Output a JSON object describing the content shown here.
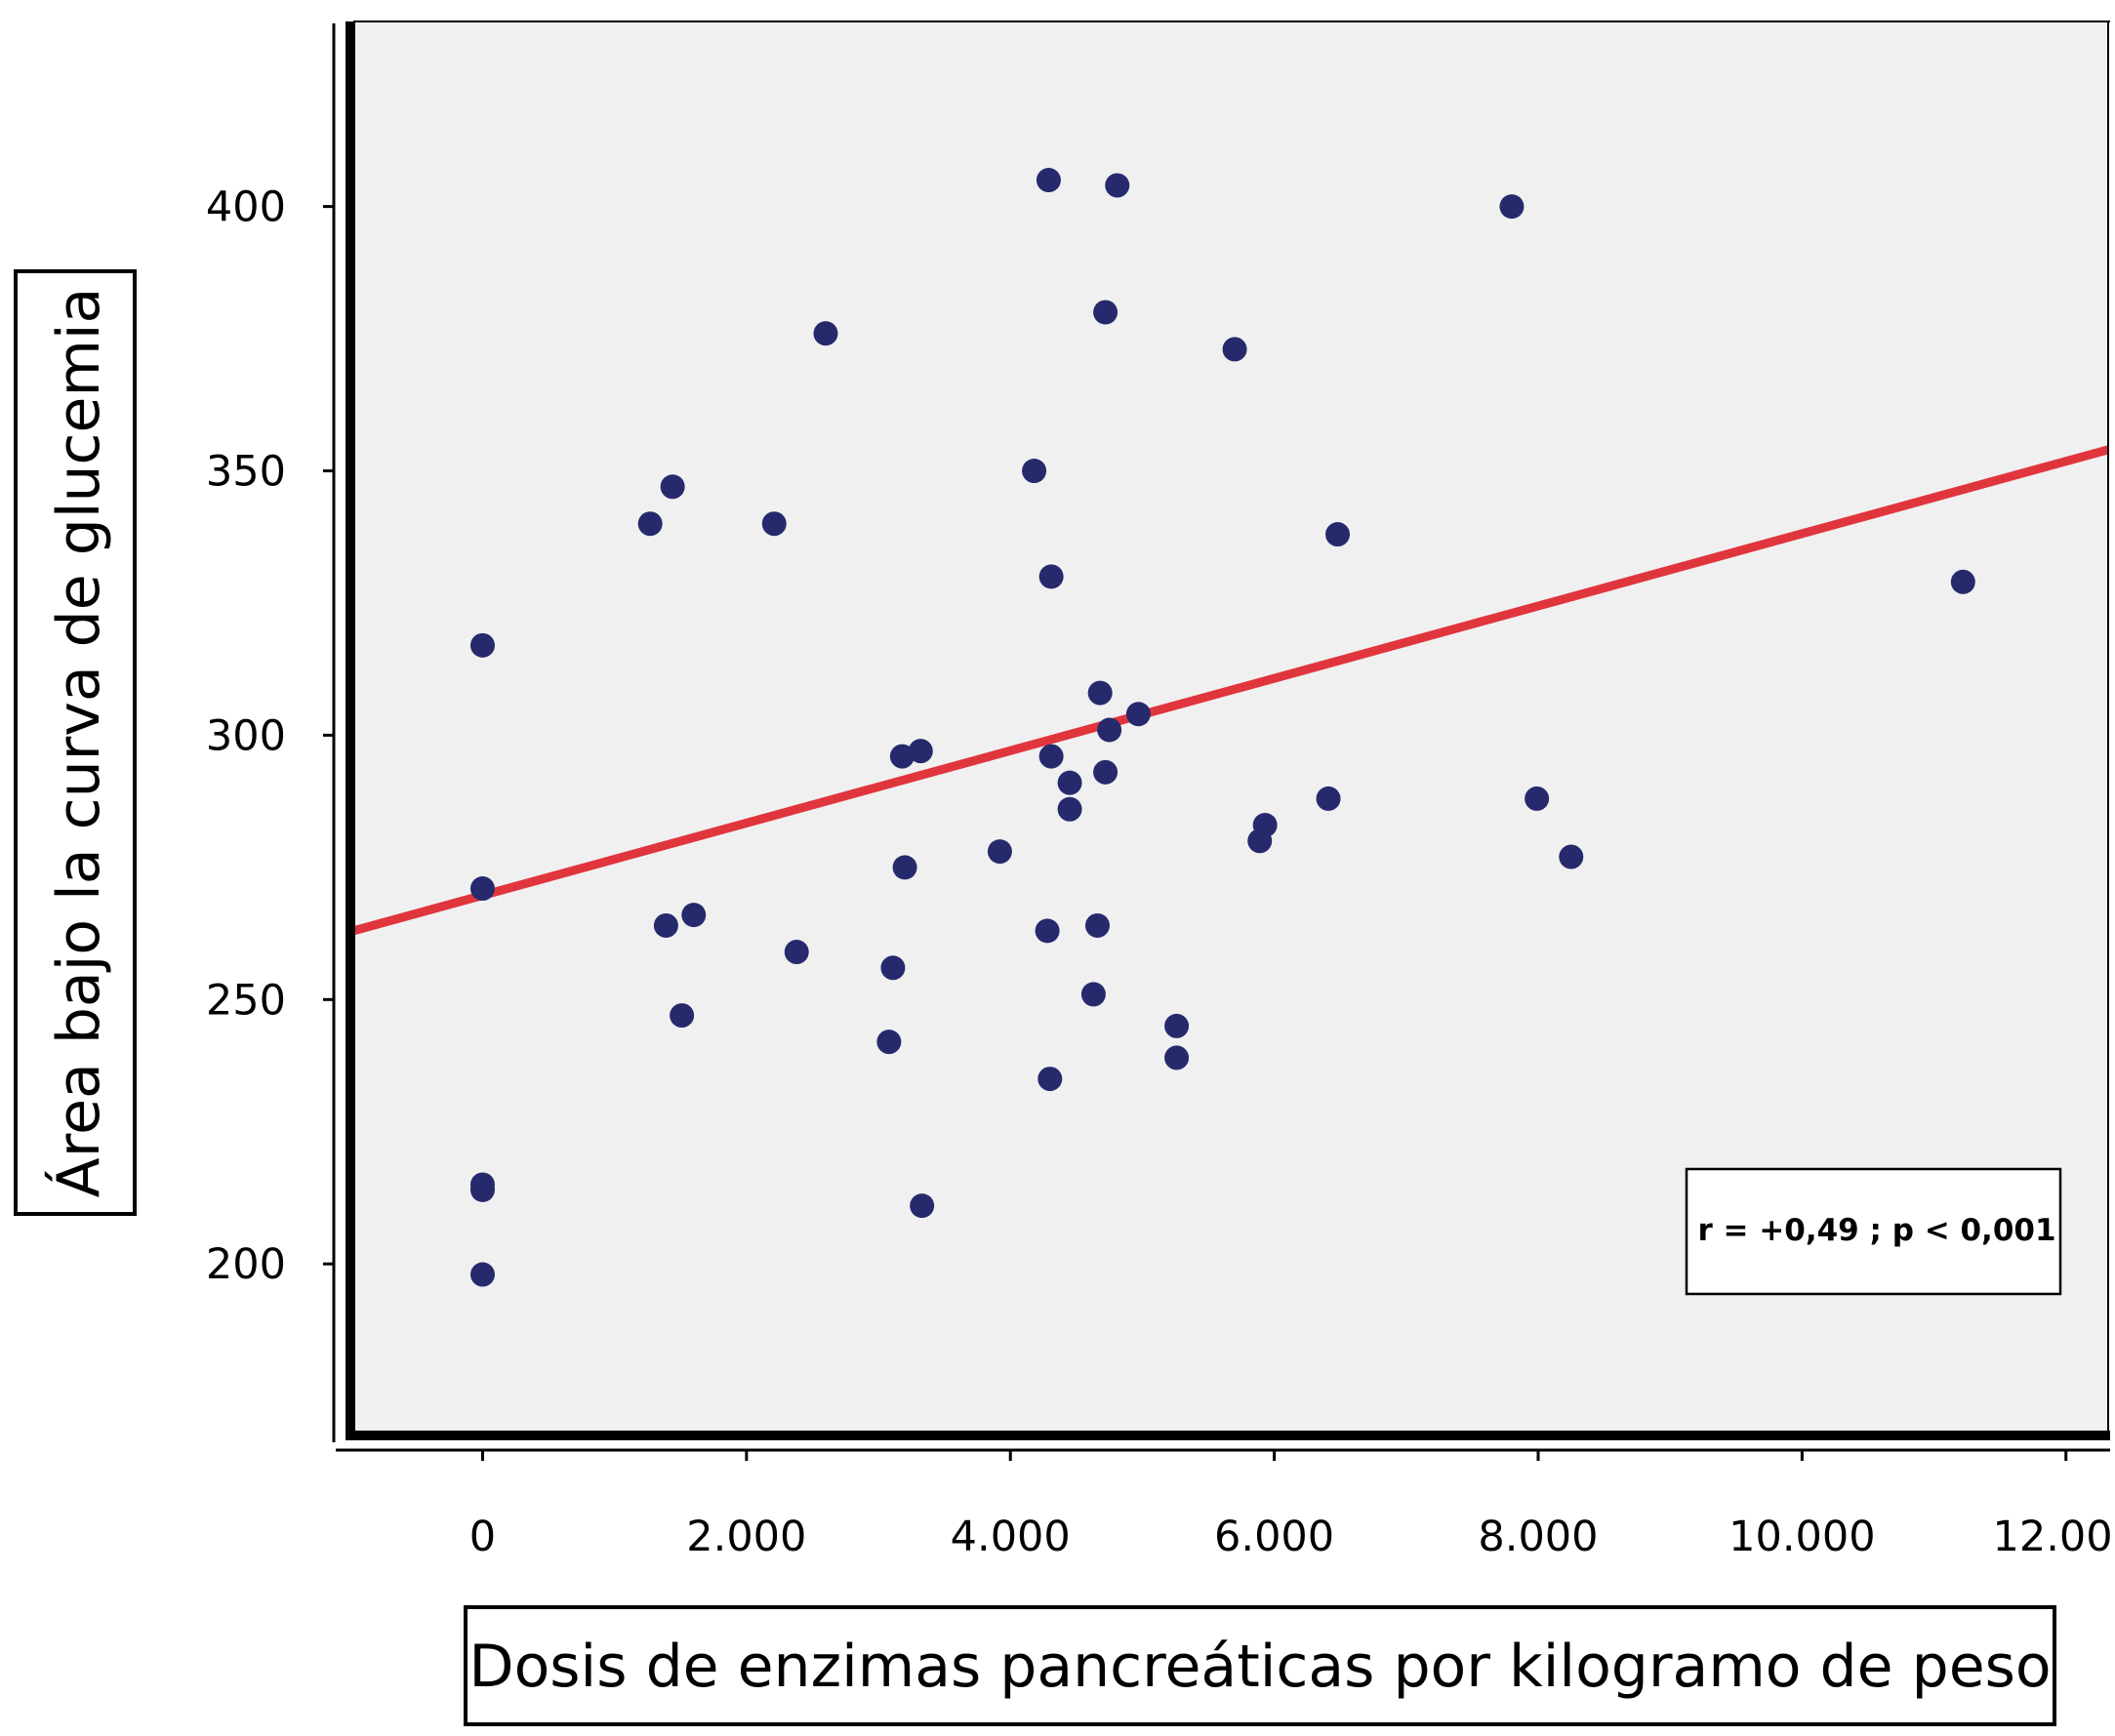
{
  "chart_data": {
    "type": "scatter",
    "title": "",
    "xlabel": "Dosis de enzimas pancreáticas por kilogramo de peso",
    "ylabel": "Área bajo la curva de glucemia",
    "xlim": [
      -980,
      12320
    ],
    "ylim": [
      167,
      435
    ],
    "x_ticks": [
      {
        "value": 0,
        "label": "0"
      },
      {
        "value": 2000,
        "label": "2.000"
      },
      {
        "value": 4000,
        "label": "4.000"
      },
      {
        "value": 6000,
        "label": "6.000"
      },
      {
        "value": 8000,
        "label": "8.000"
      },
      {
        "value": 10000,
        "label": "10.000"
      },
      {
        "value": 12000,
        "label": "12.000"
      }
    ],
    "y_ticks": [
      {
        "value": 200,
        "label": "200"
      },
      {
        "value": 250,
        "label": "250"
      },
      {
        "value": 300,
        "label": "300"
      },
      {
        "value": 350,
        "label": "350"
      },
      {
        "value": 400,
        "label": "400"
      }
    ],
    "grid": false,
    "points": [
      {
        "x": 0,
        "y": 317
      },
      {
        "x": 0,
        "y": 271
      },
      {
        "x": 0,
        "y": 215
      },
      {
        "x": 0,
        "y": 214
      },
      {
        "x": 0,
        "y": 198
      },
      {
        "x": 1270,
        "y": 340
      },
      {
        "x": 1440,
        "y": 347
      },
      {
        "x": 1390,
        "y": 264
      },
      {
        "x": 1600,
        "y": 266
      },
      {
        "x": 1510,
        "y": 247
      },
      {
        "x": 2210,
        "y": 340
      },
      {
        "x": 2600,
        "y": 376
      },
      {
        "x": 2380,
        "y": 259
      },
      {
        "x": 3110,
        "y": 256
      },
      {
        "x": 3080,
        "y": 242
      },
      {
        "x": 3180,
        "y": 296
      },
      {
        "x": 3320,
        "y": 297
      },
      {
        "x": 3200,
        "y": 275
      },
      {
        "x": 3330,
        "y": 211
      },
      {
        "x": 3920,
        "y": 278
      },
      {
        "x": 4180,
        "y": 350
      },
      {
        "x": 4290,
        "y": 405
      },
      {
        "x": 4810,
        "y": 404
      },
      {
        "x": 4720,
        "y": 380
      },
      {
        "x": 4310,
        "y": 330
      },
      {
        "x": 4680,
        "y": 308
      },
      {
        "x": 4750,
        "y": 301
      },
      {
        "x": 4970,
        "y": 304
      },
      {
        "x": 4310,
        "y": 296
      },
      {
        "x": 4720,
        "y": 293
      },
      {
        "x": 4450,
        "y": 291
      },
      {
        "x": 4450,
        "y": 286
      },
      {
        "x": 4280,
        "y": 263
      },
      {
        "x": 4660,
        "y": 264
      },
      {
        "x": 4630,
        "y": 251
      },
      {
        "x": 4300,
        "y": 235
      },
      {
        "x": 5260,
        "y": 245
      },
      {
        "x": 5260,
        "y": 239
      },
      {
        "x": 5700,
        "y": 373
      },
      {
        "x": 5930,
        "y": 283
      },
      {
        "x": 5890,
        "y": 280
      },
      {
        "x": 6480,
        "y": 338
      },
      {
        "x": 6410,
        "y": 288
      },
      {
        "x": 7800,
        "y": 400
      },
      {
        "x": 7990,
        "y": 288
      },
      {
        "x": 8250,
        "y": 277
      },
      {
        "x": 11220,
        "y": 329
      }
    ],
    "regression": {
      "x": [
        -980,
        12320
      ],
      "y": [
        263,
        354
      ]
    },
    "annotation": "r = +0,49 ; p < 0,001",
    "colors": {
      "background": "#f0f0f0",
      "point": "#262a6d",
      "line": "#e1353e",
      "frame": "#000000"
    }
  }
}
